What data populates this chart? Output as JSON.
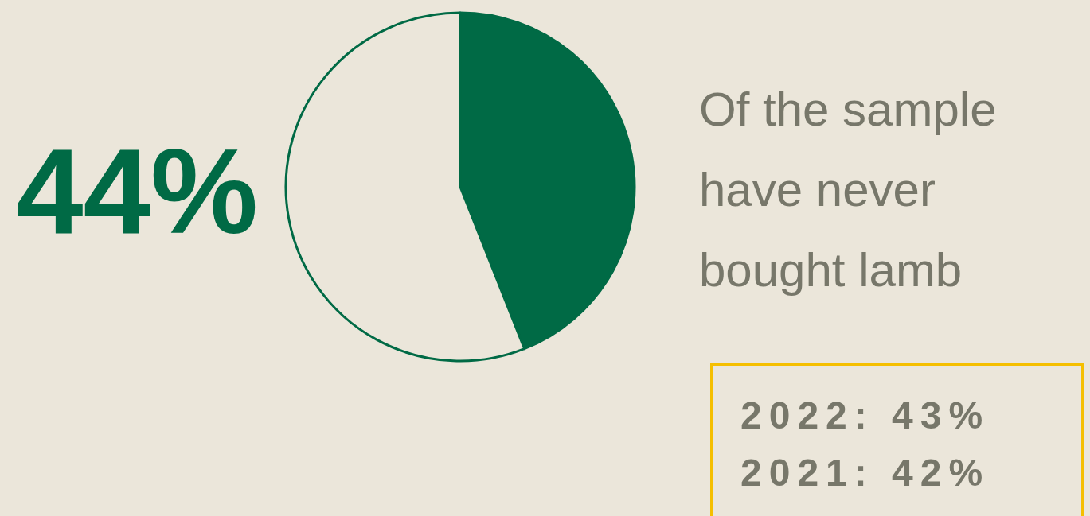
{
  "chart_data": {
    "type": "pie",
    "categories": [
      null,
      null
    ],
    "values": [
      44,
      56
    ],
    "colors": [
      "#006a45",
      "#ebe6da"
    ],
    "title": "44%",
    "annotations": [
      "Of the sample\nhave never\nbought lamb",
      "2022: 43%\n2021: 42%"
    ]
  }
}
